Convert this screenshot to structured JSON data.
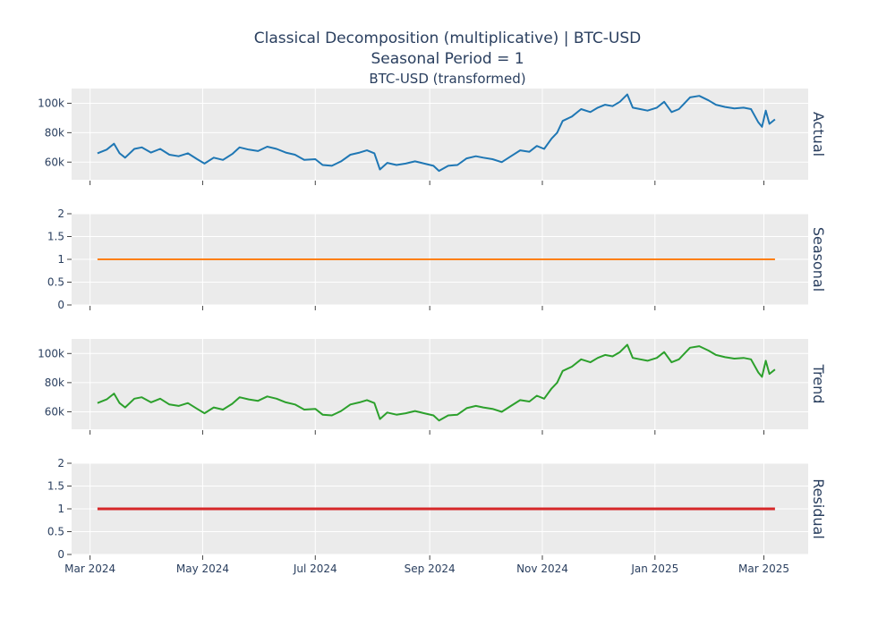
{
  "title": {
    "line1": "Classical Decomposition (multiplicative) | BTC-USD",
    "line2": "Seasonal Period = 1",
    "line3": "BTC-USD (transformed)"
  },
  "colors": {
    "plot_bg": "#ebebeb",
    "grid": "#ffffff",
    "text": "#2a3f5f",
    "actual": "#1f77b4",
    "seasonal": "#ff7f0e",
    "trend": "#2ca02c",
    "residual": "#d62728"
  },
  "chart_data": {
    "type": "line",
    "x_axis": {
      "type": "date",
      "range": [
        "2024-02-20",
        "2025-03-25"
      ],
      "ticks": [
        {
          "date": "2024-03-01",
          "label": "Mar 2024"
        },
        {
          "date": "2024-05-01",
          "label": "May 2024"
        },
        {
          "date": "2024-07-01",
          "label": "Jul 2024"
        },
        {
          "date": "2024-09-01",
          "label": "Sep 2024"
        },
        {
          "date": "2024-11-01",
          "label": "Nov 2024"
        },
        {
          "date": "2025-01-01",
          "label": "Jan 2025"
        },
        {
          "date": "2025-03-01",
          "label": "Mar 2025"
        }
      ]
    },
    "panels": [
      {
        "name": "Actual",
        "color": "#1f77b4",
        "ylim": [
          48000,
          110000
        ],
        "yticks": [
          {
            "v": 60000,
            "label": "60k"
          },
          {
            "v": 80000,
            "label": "80k"
          },
          {
            "v": 100000,
            "label": "100k"
          }
        ],
        "series": "price"
      },
      {
        "name": "Seasonal",
        "color": "#ff7f0e",
        "ylim": [
          0,
          2
        ],
        "yticks": [
          {
            "v": 0,
            "label": "0"
          },
          {
            "v": 0.5,
            "label": "0.5"
          },
          {
            "v": 1,
            "label": "1"
          },
          {
            "v": 1.5,
            "label": "1.5"
          },
          {
            "v": 2,
            "label": "2"
          }
        ],
        "series": "ones"
      },
      {
        "name": "Trend",
        "color": "#2ca02c",
        "ylim": [
          48000,
          110000
        ],
        "yticks": [
          {
            "v": 60000,
            "label": "60k"
          },
          {
            "v": 80000,
            "label": "80k"
          },
          {
            "v": 100000,
            "label": "100k"
          }
        ],
        "series": "price"
      },
      {
        "name": "Residual",
        "color": "#d62728",
        "ylim": [
          0,
          2
        ],
        "yticks": [
          {
            "v": 0,
            "label": "0"
          },
          {
            "v": 0.5,
            "label": "0.5"
          },
          {
            "v": 1,
            "label": "1"
          },
          {
            "v": 1.5,
            "label": "1.5"
          },
          {
            "v": 2,
            "label": "2"
          }
        ],
        "series": "ones"
      }
    ],
    "price_series": {
      "x": [
        "2024-03-05",
        "2024-03-10",
        "2024-03-14",
        "2024-03-17",
        "2024-03-20",
        "2024-03-25",
        "2024-03-29",
        "2024-04-03",
        "2024-04-08",
        "2024-04-13",
        "2024-04-18",
        "2024-04-23",
        "2024-04-28",
        "2024-05-02",
        "2024-05-07",
        "2024-05-12",
        "2024-05-17",
        "2024-05-21",
        "2024-05-26",
        "2024-05-31",
        "2024-06-05",
        "2024-06-10",
        "2024-06-15",
        "2024-06-20",
        "2024-06-25",
        "2024-07-01",
        "2024-07-05",
        "2024-07-10",
        "2024-07-15",
        "2024-07-20",
        "2024-07-25",
        "2024-07-29",
        "2024-08-02",
        "2024-08-05",
        "2024-08-09",
        "2024-08-14",
        "2024-08-19",
        "2024-08-24",
        "2024-08-29",
        "2024-09-03",
        "2024-09-06",
        "2024-09-11",
        "2024-09-16",
        "2024-09-21",
        "2024-09-26",
        "2024-09-30",
        "2024-10-05",
        "2024-10-10",
        "2024-10-15",
        "2024-10-20",
        "2024-10-25",
        "2024-10-29",
        "2024-11-02",
        "2024-11-06",
        "2024-11-09",
        "2024-11-12",
        "2024-11-17",
        "2024-11-22",
        "2024-11-27",
        "2024-12-01",
        "2024-12-05",
        "2024-12-09",
        "2024-12-13",
        "2024-12-17",
        "2024-12-20",
        "2024-12-24",
        "2024-12-28",
        "2025-01-02",
        "2025-01-06",
        "2025-01-10",
        "2025-01-14",
        "2025-01-20",
        "2025-01-25",
        "2025-01-30",
        "2025-02-03",
        "2025-02-08",
        "2025-02-13",
        "2025-02-18",
        "2025-02-22",
        "2025-02-26",
        "2025-02-28",
        "2025-03-02",
        "2025-03-04",
        "2025-03-07"
      ],
      "y": [
        66000,
        68500,
        72500,
        66000,
        63000,
        69000,
        70000,
        66500,
        69000,
        65000,
        64000,
        66000,
        62000,
        59000,
        63000,
        61500,
        65500,
        70000,
        68500,
        67500,
        70500,
        69000,
        66500,
        65000,
        61500,
        62000,
        58000,
        57500,
        60500,
        65000,
        66500,
        68000,
        66000,
        55000,
        59500,
        58000,
        59000,
        60500,
        59000,
        57500,
        54000,
        57500,
        58000,
        62500,
        64000,
        63000,
        62000,
        60000,
        64000,
        68000,
        67000,
        71000,
        69000,
        76000,
        80000,
        88000,
        91000,
        96000,
        94000,
        97000,
        99000,
        98000,
        101000,
        106000,
        97000,
        96000,
        95000,
        97000,
        101000,
        94000,
        96000,
        104000,
        105000,
        102000,
        99000,
        97500,
        96500,
        97000,
        96000,
        87000,
        84000,
        95000,
        86000,
        89000
      ]
    }
  }
}
